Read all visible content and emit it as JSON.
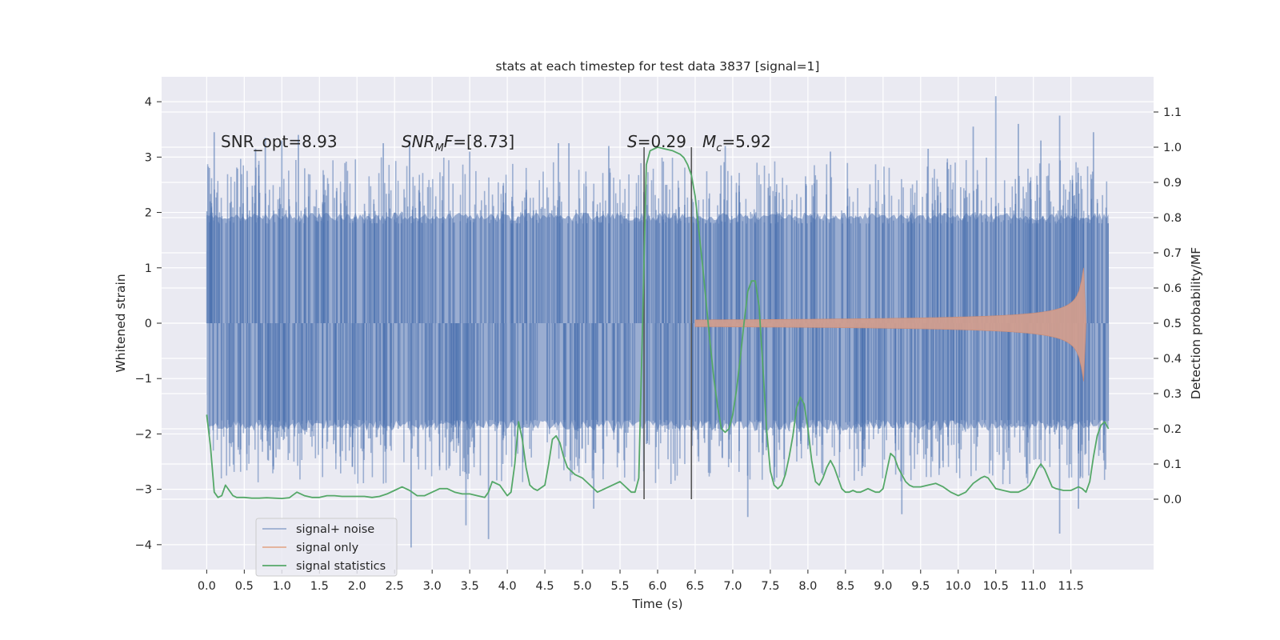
{
  "chart_data": {
    "type": "line",
    "title": "stats at each timestep for test data 3837 [signal=1]",
    "xlabel": "Time (s)",
    "ylabel": "Whitened strain",
    "ylabel_right": "Detection probability/MF",
    "xlim": [
      -0.6,
      12.6
    ],
    "ylim": [
      -4.45,
      4.45
    ],
    "ylim_right": [
      -0.2,
      1.2
    ],
    "x_ticks": [
      0.0,
      0.5,
      1.0,
      1.5,
      2.0,
      2.5,
      3.0,
      3.5,
      4.0,
      4.5,
      5.0,
      5.5,
      6.0,
      6.5,
      7.0,
      7.5,
      8.0,
      8.5,
      9.0,
      9.5,
      10.0,
      10.5,
      11.0,
      11.5
    ],
    "x_tick_labels": [
      "0.0",
      "0.5",
      "1.0",
      "1.5",
      "2.0",
      "2.5",
      "3.0",
      "3.5",
      "4.0",
      "4.5",
      "5.0",
      "5.5",
      "6.0",
      "6.5",
      "7.0",
      "7.5",
      "8.0",
      "8.5",
      "9.0",
      "9.5",
      "10.0",
      "10.5",
      "11.0",
      "11.5"
    ],
    "y_ticks": [
      -4,
      -3,
      -2,
      -1,
      0,
      1,
      2,
      3,
      4
    ],
    "y_tick_labels": [
      "−4",
      "−3",
      "−2",
      "−1",
      "0",
      "1",
      "2",
      "3",
      "4"
    ],
    "y_right_ticks": [
      0.0,
      0.1,
      0.2,
      0.3,
      0.4,
      0.5,
      0.6,
      0.7,
      0.8,
      0.9,
      1.0,
      1.1
    ],
    "y_right_tick_labels": [
      "0.0",
      "0.1",
      "0.2",
      "0.3",
      "0.4",
      "0.5",
      "0.6",
      "0.7",
      "0.8",
      "0.9",
      "1.0",
      "1.1"
    ],
    "grid": true,
    "legend_position": "lower-left",
    "legend": [
      "signal+ noise",
      "signal only",
      "signal statistics"
    ],
    "colors": {
      "background": "#eaeaf2",
      "grid": "#ffffff",
      "signal_noise": "#4c72b0",
      "signal_only": "#dd8452",
      "signal_statistics": "#55a868",
      "vlines": "#555555"
    },
    "annotations": {
      "snr_opt": "SNR_opt=8.93",
      "snr_mf_text": "=[8.73]",
      "s_text": "=0.29",
      "mc_text": "=5.92"
    },
    "vertical_lines_x": [
      5.82,
      6.45
    ],
    "signal_noise": {
      "x_range": [
        0.0,
        12.0
      ],
      "core_amplitude": 1.3,
      "upper_spike_peaks": [
        {
          "x": 0.1,
          "y": 3.45
        },
        {
          "x": 0.65,
          "y": 3.15
        },
        {
          "x": 0.78,
          "y": 3.35
        },
        {
          "x": 1.0,
          "y": 3.3
        },
        {
          "x": 1.22,
          "y": 3.4
        },
        {
          "x": 2.35,
          "y": 3.25
        },
        {
          "x": 2.7,
          "y": 3.3
        },
        {
          "x": 3.5,
          "y": 3.1
        },
        {
          "x": 4.68,
          "y": 3.25
        },
        {
          "x": 4.82,
          "y": 3.25
        },
        {
          "x": 5.35,
          "y": 3.2
        },
        {
          "x": 6.9,
          "y": 3.2
        },
        {
          "x": 8.3,
          "y": 3.1
        },
        {
          "x": 9.6,
          "y": 3.15
        },
        {
          "x": 10.2,
          "y": 3.55
        },
        {
          "x": 10.5,
          "y": 4.1
        },
        {
          "x": 10.8,
          "y": 3.6
        },
        {
          "x": 11.1,
          "y": 3.3
        },
        {
          "x": 11.35,
          "y": 3.75
        },
        {
          "x": 11.8,
          "y": 3.45
        }
      ],
      "lower_spike_peaks": [
        {
          "x": 2.72,
          "y": -4.05
        },
        {
          "x": 3.45,
          "y": -3.65
        },
        {
          "x": 3.75,
          "y": -3.9
        },
        {
          "x": 5.15,
          "y": -3.35
        },
        {
          "x": 7.2,
          "y": -3.5
        },
        {
          "x": 9.25,
          "y": -3.45
        },
        {
          "x": 11.35,
          "y": -3.8
        },
        {
          "x": 11.6,
          "y": -3.35
        }
      ]
    },
    "signal_only": {
      "t_start": 6.5,
      "t_merge": 11.67,
      "t_end": 11.7,
      "amplitude_start": 0.06,
      "amplitude_peak": 1.0
    },
    "signal_statistics": {
      "x": [
        0.0,
        0.05,
        0.1,
        0.15,
        0.2,
        0.25,
        0.3,
        0.35,
        0.4,
        0.5,
        0.6,
        0.7,
        0.8,
        0.9,
        1.0,
        1.1,
        1.2,
        1.3,
        1.4,
        1.5,
        1.6,
        1.7,
        1.8,
        1.9,
        2.0,
        2.1,
        2.2,
        2.3,
        2.4,
        2.5,
        2.6,
        2.7,
        2.8,
        2.9,
        3.0,
        3.1,
        3.2,
        3.3,
        3.4,
        3.5,
        3.6,
        3.7,
        3.75,
        3.8,
        3.9,
        4.0,
        4.05,
        4.1,
        4.15,
        4.2,
        4.25,
        4.3,
        4.35,
        4.4,
        4.5,
        4.55,
        4.6,
        4.65,
        4.7,
        4.75,
        4.8,
        4.85,
        4.9,
        5.0,
        5.1,
        5.2,
        5.3,
        5.4,
        5.5,
        5.55,
        5.6,
        5.65,
        5.7,
        5.75,
        5.8,
        5.85,
        5.9,
        6.0,
        6.1,
        6.2,
        6.3,
        6.35,
        6.4,
        6.45,
        6.5,
        6.55,
        6.6,
        6.65,
        6.7,
        6.75,
        6.8,
        6.85,
        6.9,
        6.95,
        7.0,
        7.05,
        7.1,
        7.15,
        7.2,
        7.25,
        7.3,
        7.35,
        7.4,
        7.45,
        7.5,
        7.55,
        7.6,
        7.65,
        7.7,
        7.75,
        7.8,
        7.85,
        7.9,
        7.95,
        8.0,
        8.05,
        8.1,
        8.15,
        8.2,
        8.25,
        8.3,
        8.35,
        8.4,
        8.45,
        8.5,
        8.55,
        8.6,
        8.65,
        8.7,
        8.75,
        8.8,
        8.85,
        8.9,
        8.95,
        9.0,
        9.1,
        9.15,
        9.2,
        9.25,
        9.3,
        9.35,
        9.4,
        9.5,
        9.6,
        9.7,
        9.8,
        9.9,
        10.0,
        10.1,
        10.2,
        10.3,
        10.35,
        10.4,
        10.5,
        10.6,
        10.7,
        10.8,
        10.9,
        10.95,
        11.0,
        11.05,
        11.1,
        11.15,
        11.2,
        11.25,
        11.3,
        11.4,
        11.5,
        11.55,
        11.6,
        11.65,
        11.7,
        11.75,
        11.8,
        11.85,
        11.9,
        11.95,
        12.0
      ],
      "y": [
        0.24,
        0.15,
        0.02,
        0.005,
        0.01,
        0.04,
        0.025,
        0.01,
        0.005,
        0.005,
        0.003,
        0.003,
        0.004,
        0.003,
        0.002,
        0.004,
        0.02,
        0.01,
        0.005,
        0.005,
        0.01,
        0.01,
        0.008,
        0.008,
        0.008,
        0.008,
        0.005,
        0.008,
        0.015,
        0.025,
        0.035,
        0.025,
        0.01,
        0.01,
        0.02,
        0.03,
        0.03,
        0.02,
        0.015,
        0.015,
        0.01,
        0.005,
        0.02,
        0.05,
        0.04,
        0.01,
        0.02,
        0.1,
        0.22,
        0.17,
        0.09,
        0.04,
        0.03,
        0.025,
        0.04,
        0.1,
        0.17,
        0.18,
        0.16,
        0.12,
        0.09,
        0.08,
        0.07,
        0.06,
        0.04,
        0.02,
        0.03,
        0.04,
        0.05,
        0.04,
        0.03,
        0.02,
        0.02,
        0.06,
        0.5,
        0.95,
        0.99,
        1.0,
        0.995,
        0.99,
        0.98,
        0.97,
        0.95,
        0.92,
        0.86,
        0.76,
        0.66,
        0.55,
        0.44,
        0.34,
        0.26,
        0.2,
        0.19,
        0.2,
        0.24,
        0.31,
        0.4,
        0.5,
        0.59,
        0.62,
        0.62,
        0.55,
        0.38,
        0.2,
        0.08,
        0.04,
        0.03,
        0.04,
        0.07,
        0.12,
        0.18,
        0.26,
        0.29,
        0.27,
        0.2,
        0.11,
        0.05,
        0.04,
        0.06,
        0.09,
        0.11,
        0.09,
        0.06,
        0.03,
        0.02,
        0.02,
        0.025,
        0.02,
        0.02,
        0.025,
        0.03,
        0.025,
        0.02,
        0.02,
        0.03,
        0.13,
        0.12,
        0.09,
        0.07,
        0.05,
        0.04,
        0.035,
        0.035,
        0.04,
        0.045,
        0.035,
        0.02,
        0.01,
        0.02,
        0.045,
        0.06,
        0.065,
        0.06,
        0.03,
        0.025,
        0.02,
        0.02,
        0.03,
        0.04,
        0.06,
        0.085,
        0.1,
        0.085,
        0.06,
        0.035,
        0.03,
        0.025,
        0.025,
        0.03,
        0.035,
        0.03,
        0.02,
        0.05,
        0.12,
        0.18,
        0.21,
        0.22,
        0.2
      ]
    }
  }
}
